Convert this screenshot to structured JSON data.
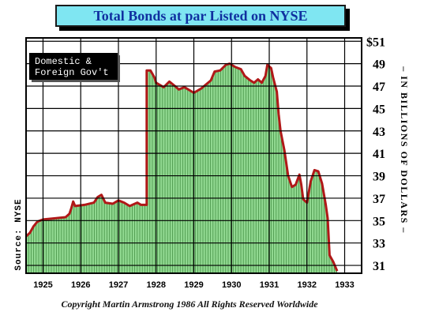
{
  "title": "Total Bonds at par Listed on NYSE",
  "footer": "Copyright Martin Armstrong 1986 All Rights Reserved Worldwide",
  "source": "Source: NYSE",
  "colors": {
    "fill": "#90d890",
    "line": "#b01818",
    "legend_bg": "#000000",
    "legend_text": "#ffffff",
    "title_bg": "#7fe6f2",
    "title_text": "#1030a0"
  },
  "chart_data": {
    "type": "area",
    "title": "Total Bonds at par Listed on NYSE",
    "ylabel": "– IN BILLIONS OF DOLLARS –",
    "xlabel": "",
    "xlim": [
      1924.55,
      1933.45
    ],
    "ylim": [
      30.3,
      51.3
    ],
    "x_ticks": [
      "1925",
      "1926",
      "1927",
      "1928",
      "1929",
      "1930",
      "1931",
      "1932",
      "1933"
    ],
    "y_ticks": [
      "$51",
      "49",
      "47",
      "45",
      "43",
      "41",
      "39",
      "37",
      "35",
      "33",
      "31"
    ],
    "grid": true,
    "legend": {
      "text": [
        "Domestic &",
        "Foreign Gov't"
      ],
      "position": "top-left"
    },
    "series": [
      {
        "name": "Domestic & Foreign Gov't",
        "points": [
          [
            1924.55,
            33.6
          ],
          [
            1924.65,
            33.9
          ],
          [
            1924.75,
            34.5
          ],
          [
            1924.85,
            34.9
          ],
          [
            1925.0,
            35.1
          ],
          [
            1925.3,
            35.2
          ],
          [
            1925.6,
            35.3
          ],
          [
            1925.7,
            35.6
          ],
          [
            1925.75,
            36.1
          ],
          [
            1925.8,
            36.7
          ],
          [
            1925.85,
            36.3
          ],
          [
            1926.1,
            36.4
          ],
          [
            1926.35,
            36.6
          ],
          [
            1926.45,
            37.1
          ],
          [
            1926.55,
            37.3
          ],
          [
            1926.65,
            36.6
          ],
          [
            1926.85,
            36.5
          ],
          [
            1927.0,
            36.8
          ],
          [
            1927.15,
            36.6
          ],
          [
            1927.3,
            36.3
          ],
          [
            1927.5,
            36.6
          ],
          [
            1927.6,
            36.4
          ],
          [
            1927.75,
            36.4
          ],
          [
            1927.75,
            48.4
          ],
          [
            1927.85,
            48.4
          ],
          [
            1927.95,
            47.8
          ],
          [
            1928.0,
            47.3
          ],
          [
            1928.2,
            46.9
          ],
          [
            1928.35,
            47.4
          ],
          [
            1928.5,
            47.0
          ],
          [
            1928.6,
            46.7
          ],
          [
            1928.75,
            46.9
          ],
          [
            1929.0,
            46.4
          ],
          [
            1929.2,
            46.8
          ],
          [
            1929.45,
            47.5
          ],
          [
            1929.55,
            48.3
          ],
          [
            1929.7,
            48.4
          ],
          [
            1929.85,
            48.9
          ],
          [
            1929.95,
            49.0
          ],
          [
            1930.1,
            48.7
          ],
          [
            1930.25,
            48.5
          ],
          [
            1930.35,
            47.9
          ],
          [
            1930.5,
            47.5
          ],
          [
            1930.6,
            47.3
          ],
          [
            1930.7,
            47.6
          ],
          [
            1930.8,
            47.3
          ],
          [
            1930.9,
            47.9
          ],
          [
            1930.95,
            48.9
          ],
          [
            1931.05,
            48.6
          ],
          [
            1931.1,
            47.8
          ],
          [
            1931.2,
            46.5
          ],
          [
            1931.25,
            44.5
          ],
          [
            1931.3,
            43.0
          ],
          [
            1931.4,
            41.3
          ],
          [
            1931.5,
            39.0
          ],
          [
            1931.6,
            38.0
          ],
          [
            1931.7,
            38.2
          ],
          [
            1931.8,
            39.1
          ],
          [
            1931.85,
            38.2
          ],
          [
            1931.9,
            36.9
          ],
          [
            1932.0,
            36.6
          ],
          [
            1932.1,
            38.5
          ],
          [
            1932.2,
            39.5
          ],
          [
            1932.3,
            39.4
          ],
          [
            1932.4,
            38.3
          ],
          [
            1932.5,
            36.4
          ],
          [
            1932.55,
            35.2
          ],
          [
            1932.6,
            31.9
          ],
          [
            1932.7,
            31.3
          ],
          [
            1932.8,
            30.5
          ]
        ]
      }
    ]
  }
}
